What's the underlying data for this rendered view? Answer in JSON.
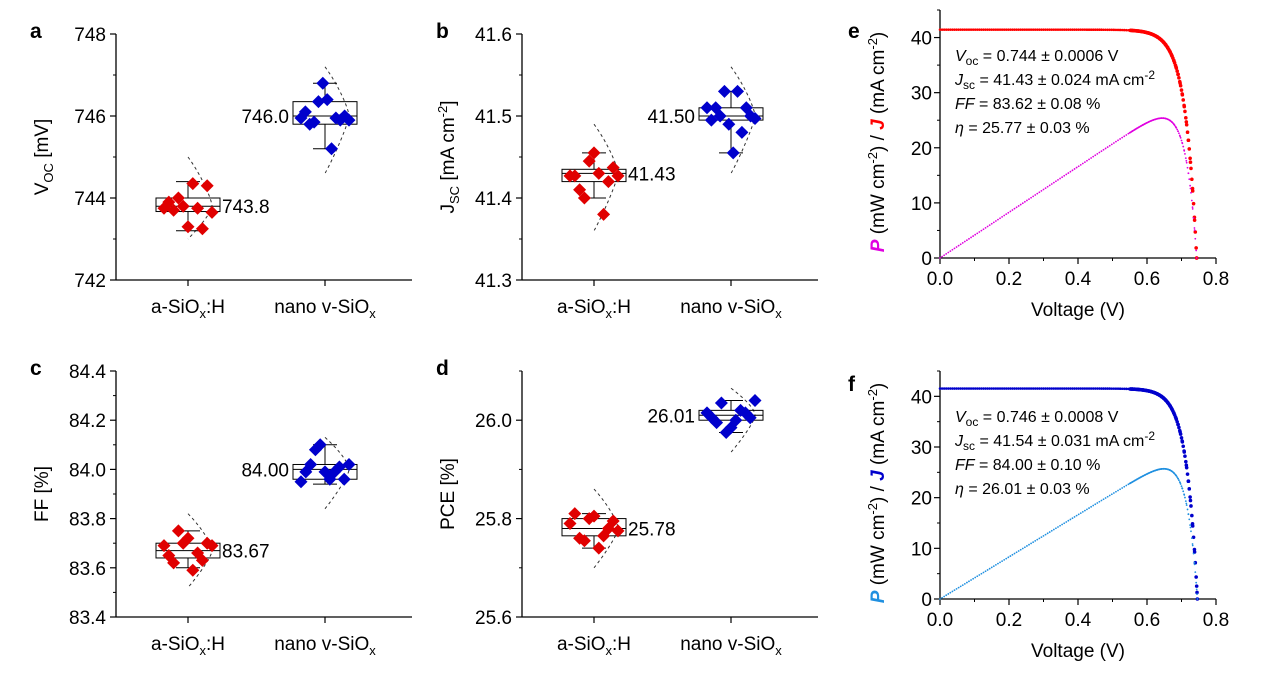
{
  "colors": {
    "a_sio": "#e00000",
    "nano": "#0000cc",
    "power_e": "#e000e0",
    "current_e": "#ff0000",
    "power_f": "#2090e0",
    "current_f": "#0000cc",
    "J_letter_e": "#ff0000",
    "P_letter_e": "#e000e0",
    "J_letter_f": "#0000cc",
    "P_letter_f": "#2090e0"
  },
  "chart_data": [
    {
      "panel": "a",
      "type": "box",
      "ylabel_main": "V",
      "ylabel_sub": "OC",
      "ylabel_unit": " [mV]",
      "ylim": [
        742,
        748
      ],
      "yticks": [
        "742",
        "744",
        "746",
        "748"
      ],
      "categories": [
        {
          "main": "a-SiO",
          "sub": "x",
          "tail": ":H"
        },
        {
          "main": "nano v-SiO",
          "sub": "x",
          "tail": ""
        }
      ],
      "groups": [
        {
          "median": 743.8,
          "q1": 743.67,
          "q3": 744.0,
          "wlo": 743.2,
          "whi": 744.4,
          "dmin": 743.0,
          "dmax": 745.0,
          "points": [
            743.75,
            743.9,
            743.7,
            744.0,
            743.8,
            743.3,
            744.35,
            743.75,
            743.25,
            744.3,
            743.65
          ],
          "label": "743.8"
        },
        {
          "median": 746.0,
          "q1": 745.8,
          "q3": 746.35,
          "wlo": 745.2,
          "whi": 746.8,
          "dmin": 744.6,
          "dmax": 747.2,
          "points": [
            745.95,
            746.1,
            745.8,
            745.85,
            746.35,
            746.8,
            746.4,
            745.2,
            745.95,
            745.9,
            746.0,
            745.9
          ],
          "label": "746.0"
        }
      ]
    },
    {
      "panel": "b",
      "type": "box",
      "ylabel_main": "J",
      "ylabel_sub": "SC",
      "ylabel_unit": " [mA cm",
      "ylabel_sup": "-2",
      "ylabel_close": "]",
      "ylim": [
        41.3,
        41.6
      ],
      "yticks": [
        "41.3",
        "41.4",
        "41.5",
        "41.6"
      ],
      "categories": [
        {
          "main": "a-SiO",
          "sub": "x",
          "tail": ":H"
        },
        {
          "main": "nano v-SiO",
          "sub": "x",
          "tail": ""
        }
      ],
      "groups": [
        {
          "median": 41.43,
          "q1": 41.42,
          "q3": 41.435,
          "wlo": 41.4,
          "whi": 41.455,
          "dmin": 41.36,
          "dmax": 41.49,
          "points": [
            41.427,
            41.427,
            41.41,
            41.4,
            41.445,
            41.455,
            41.43,
            41.38,
            41.42,
            41.437,
            41.427
          ],
          "label": "41.43"
        },
        {
          "median": 41.5,
          "q1": 41.495,
          "q3": 41.51,
          "wlo": 41.455,
          "whi": 41.53,
          "dmin": 41.43,
          "dmax": 41.56,
          "points": [
            41.51,
            41.495,
            41.51,
            41.5,
            41.53,
            41.49,
            41.455,
            41.53,
            41.48,
            41.51,
            41.5,
            41.497
          ],
          "label": "41.50"
        }
      ]
    },
    {
      "panel": "c",
      "type": "box",
      "ylabel_main": "FF [%]",
      "ylim": [
        83.4,
        84.4
      ],
      "yticks": [
        "83.4",
        "83.6",
        "83.8",
        "84.0",
        "84.2",
        "84.4"
      ],
      "categories": [
        {
          "main": "a-SiO",
          "sub": "x",
          "tail": ":H"
        },
        {
          "main": "nano v-SiO",
          "sub": "x",
          "tail": ""
        }
      ],
      "groups": [
        {
          "median": 83.67,
          "q1": 83.64,
          "q3": 83.7,
          "wlo": 83.6,
          "whi": 83.75,
          "dmin": 83.52,
          "dmax": 83.82,
          "points": [
            83.69,
            83.65,
            83.62,
            83.75,
            83.7,
            83.72,
            83.59,
            83.66,
            83.63,
            83.7,
            83.69
          ],
          "label": "83.67"
        },
        {
          "median": 84.0,
          "q1": 83.96,
          "q3": 84.02,
          "wlo": 83.94,
          "whi": 84.1,
          "dmin": 83.84,
          "dmax": 84.13,
          "points": [
            83.95,
            83.99,
            84.02,
            84.08,
            84.1,
            83.99,
            83.96,
            83.99,
            84.01,
            83.96,
            84.02
          ],
          "label": "84.00"
        }
      ]
    },
    {
      "panel": "d",
      "type": "box",
      "ylabel_main": "PCE [%]",
      "ylim": [
        25.6,
        26.1
      ],
      "yticks": [
        "25.6",
        "25.8",
        "26.0"
      ],
      "categories": [
        {
          "main": "a-SiO",
          "sub": "x",
          "tail": ":H"
        },
        {
          "main": "nano v-SiO",
          "sub": "x",
          "tail": ""
        }
      ],
      "groups": [
        {
          "median": 25.78,
          "q1": 25.765,
          "q3": 25.8,
          "wlo": 25.74,
          "whi": 25.81,
          "dmin": 25.7,
          "dmax": 25.86,
          "points": [
            25.79,
            25.81,
            25.76,
            25.755,
            25.8,
            25.805,
            25.74,
            25.765,
            25.78,
            25.795,
            25.775
          ],
          "label": "25.78"
        },
        {
          "median": 26.01,
          "q1": 26.0,
          "q3": 26.02,
          "wlo": 25.975,
          "whi": 26.04,
          "dmin": 25.935,
          "dmax": 26.065,
          "points": [
            26.015,
            26.005,
            25.995,
            26.035,
            25.975,
            25.985,
            26.0,
            26.02,
            26.015,
            26.005,
            26.04
          ],
          "label": "26.01"
        }
      ]
    },
    {
      "panel": "e",
      "type": "line",
      "xlabel": "Voltage (V)",
      "xlim": [
        0,
        0.8
      ],
      "ylim": [
        0,
        45
      ],
      "xticks": [
        "0.0",
        "0.2",
        "0.4",
        "0.6",
        "0.8"
      ],
      "yticks": [
        "0",
        "10",
        "20",
        "30",
        "40"
      ],
      "ylabel_parts": {
        "P": "P",
        "mid1": " (mW cm",
        "sup1": "-2",
        "mid2": ") / ",
        "J": "J",
        "mid3": " (mA cm",
        "sup2": "-2",
        "end": ")"
      },
      "jv": {
        "jsc": 41.43,
        "voc": 0.744,
        "vt": 0.0331
      },
      "series": [
        {
          "name": "J",
          "color_key": "current_e",
          "kind": "J"
        },
        {
          "name": "P",
          "color_key": "power_e",
          "kind": "P"
        }
      ],
      "annotations": [
        {
          "var": "V",
          "sub": "oc",
          "rest": " = 0.744 ± 0.0006 V"
        },
        {
          "var": "J",
          "sub": "sc",
          "rest": " = 41.43 ± 0.024 mA cm",
          "sup": "-2"
        },
        {
          "var": "FF",
          "sub": "",
          "rest": " = 83.62 ± 0.08 %"
        },
        {
          "var": "η",
          "sub": "",
          "rest": " = 25.77 ± 0.03 %"
        }
      ]
    },
    {
      "panel": "f",
      "type": "line",
      "xlabel": "Voltage (V)",
      "xlim": [
        0,
        0.8
      ],
      "ylim": [
        0,
        45
      ],
      "xticks": [
        "0.0",
        "0.2",
        "0.4",
        "0.6",
        "0.8"
      ],
      "yticks": [
        "0",
        "10",
        "20",
        "30",
        "40"
      ],
      "ylabel_parts": {
        "P": "P",
        "mid1": " (mW cm",
        "sup1": "-2",
        "mid2": ") / ",
        "J": "J",
        "mid3": " (mA cm",
        "sup2": "-2",
        "end": ")"
      },
      "jv": {
        "jsc": 41.54,
        "voc": 0.746,
        "vt": 0.0317
      },
      "series": [
        {
          "name": "J",
          "color_key": "current_f",
          "kind": "J"
        },
        {
          "name": "P",
          "color_key": "power_f",
          "kind": "P"
        }
      ],
      "annotations": [
        {
          "var": "V",
          "sub": "oc",
          "rest": " = 0.746 ± 0.0008 V"
        },
        {
          "var": "J",
          "sub": "sc",
          "rest": " = 41.54 ± 0.031 mA cm",
          "sup": "-2"
        },
        {
          "var": "FF",
          "sub": "",
          "rest": " = 84.00 ± 0.10 %"
        },
        {
          "var": "η",
          "sub": "",
          "rest": " = 26.01 ± 0.03 %"
        }
      ]
    }
  ]
}
